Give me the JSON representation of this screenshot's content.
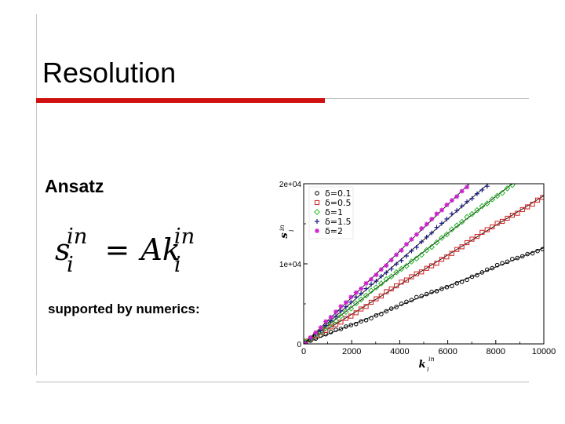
{
  "slide": {
    "title": "Resolution",
    "subheading": "Ansatz",
    "formula": {
      "s": "s",
      "A": "A",
      "k": "k",
      "sup": "in",
      "sub": "i",
      "eq": "="
    },
    "support_text": "supported by numerics:",
    "accent_color": "#d01010"
  },
  "chart_data": {
    "type": "scatter",
    "xlabel": {
      "base": "k",
      "sup": "in",
      "sub": "i"
    },
    "ylabel": {
      "base": "s",
      "sup": "in",
      "sub": "i"
    },
    "xlim": [
      0,
      10000
    ],
    "ylim": [
      0,
      20000
    ],
    "x_ticks": [
      0,
      2000,
      4000,
      6000,
      8000,
      10000
    ],
    "x_tick_labels": [
      "0",
      "2000",
      "4000",
      "6000",
      "8000",
      "10000"
    ],
    "y_ticks": [
      0,
      10000,
      20000
    ],
    "y_tick_labels": [
      "0",
      "1e+04",
      "2e+04"
    ],
    "grid": false,
    "legend_position": "top-left",
    "series": [
      {
        "name": "δ=0.1",
        "slope": 1.2,
        "x_max": 10000,
        "marker": "circle",
        "color": "#000000"
      },
      {
        "name": "δ=0.5",
        "slope": 1.85,
        "x_max": 10000,
        "marker": "square",
        "color": "#cc2222"
      },
      {
        "name": "δ=1",
        "slope": 2.3,
        "x_max": 8700,
        "marker": "diamond",
        "color": "#22bb22"
      },
      {
        "name": "δ=1.5",
        "slope": 2.6,
        "x_max": 7700,
        "marker": "plus",
        "color": "#1a1a8c"
      },
      {
        "name": "δ=2",
        "slope": 2.9,
        "x_max": 7000,
        "marker": "star",
        "color": "#cc22cc"
      }
    ]
  }
}
